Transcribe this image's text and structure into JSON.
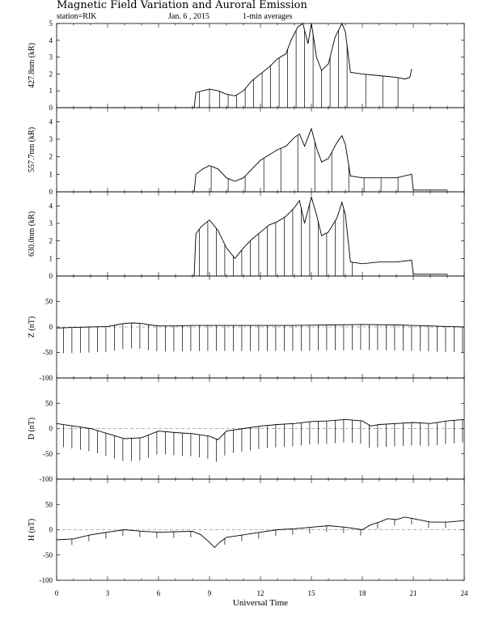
{
  "title": "Magnetic Field Variation and Auroral Emission",
  "station": "station=RIK",
  "date": "Jan. 6  , 2015",
  "averaging": "1-min averages",
  "chart_data": {
    "type": "line",
    "xlabel": "Universal Time",
    "xlim": [
      0,
      24
    ],
    "xticks": [
      "0",
      "3",
      "6",
      "9",
      "12",
      "15",
      "18",
      "21",
      "24"
    ],
    "panels": [
      {
        "name": "427.8nm (kR)",
        "ylim": [
          0,
          5
        ],
        "yticks": [
          "0",
          "1",
          "2",
          "3",
          "4",
          "5"
        ],
        "zero_line": false,
        "series": [
          {
            "x": [
              0,
              8.1,
              8.2,
              8.6,
              9.0,
              9.5,
              10.0,
              10.5,
              11.0,
              11.5,
              12.0,
              12.5,
              13.0,
              13.5,
              13.8,
              14.2,
              14.5,
              14.8,
              15.0,
              15.3,
              15.6,
              16.0,
              16.4,
              16.8,
              17.0,
              17.3,
              18.0,
              19.0,
              20.0,
              20.5,
              20.8,
              20.9
            ],
            "y": [
              0,
              0,
              0.9,
              1.0,
              1.1,
              1.0,
              0.8,
              0.7,
              1.0,
              1.6,
              2.0,
              2.4,
              2.9,
              3.2,
              4.0,
              4.8,
              5.0,
              3.8,
              5.0,
              3.0,
              2.2,
              2.6,
              4.2,
              5.0,
              4.5,
              2.1,
              2.0,
              1.9,
              1.8,
              1.7,
              1.8,
              2.3
            ]
          }
        ],
        "spikes": [
          8.4,
          9.0,
          9.6,
          10.1,
          10.6,
          11.1,
          11.6,
          12.1,
          12.6,
          13.1,
          13.6,
          14.1,
          14.6,
          15.1,
          15.6,
          16.1,
          16.6,
          17.1,
          18.2,
          19.2,
          20.1
        ]
      },
      {
        "name": "557.7nm (kR)",
        "ylim": [
          0,
          4.8
        ],
        "yticks": [
          "0",
          "1",
          "2",
          "3",
          "4"
        ],
        "zero_line": false,
        "series": [
          {
            "x": [
              0,
              8.1,
              8.2,
              8.6,
              9.0,
              9.5,
              10.0,
              10.5,
              11.0,
              11.5,
              12.0,
              12.5,
              13.0,
              13.5,
              14.0,
              14.3,
              14.6,
              15.0,
              15.3,
              15.6,
              16.0,
              16.5,
              16.8,
              17.0,
              17.3,
              18.0,
              19.0,
              20.0,
              20.9,
              21.0,
              23.0
            ],
            "y": [
              0,
              0,
              1.0,
              1.3,
              1.5,
              1.3,
              0.8,
              0.6,
              0.8,
              1.3,
              1.8,
              2.1,
              2.4,
              2.6,
              3.1,
              3.3,
              2.6,
              3.6,
              2.5,
              1.7,
              1.9,
              2.8,
              3.2,
              2.7,
              0.9,
              0.8,
              0.8,
              0.8,
              1.0,
              0.1,
              0.1
            ]
          }
        ],
        "spikes": [
          9.1,
          10.1,
          11.1,
          12.2,
          13.2,
          14.2,
          15.2,
          16.2,
          17.2,
          18.1,
          19.1,
          20.1
        ]
      },
      {
        "name": "630.0nm (kR)",
        "ylim": [
          0,
          4.8
        ],
        "yticks": [
          "0",
          "1",
          "2",
          "3",
          "4"
        ],
        "zero_line": false,
        "series": [
          {
            "x": [
              0,
              8.1,
              8.2,
              8.5,
              9.0,
              9.5,
              10.0,
              10.5,
              11.0,
              11.5,
              12.0,
              12.5,
              13.0,
              13.5,
              14.0,
              14.3,
              14.6,
              15.0,
              15.3,
              15.6,
              16.0,
              16.5,
              16.8,
              17.0,
              17.3,
              18.0,
              19.0,
              20.0,
              20.9,
              21.0,
              23.0
            ],
            "y": [
              0,
              0,
              2.4,
              2.8,
              3.2,
              2.6,
              1.6,
              1.0,
              1.6,
              2.1,
              2.5,
              2.9,
              3.1,
              3.4,
              3.9,
              4.3,
              3.0,
              4.5,
              3.5,
              2.3,
              2.5,
              3.3,
              4.2,
              3.5,
              0.8,
              0.7,
              0.8,
              0.8,
              0.9,
              0.1,
              0.1
            ]
          }
        ],
        "spikes": [
          8.4,
          8.9,
          9.4,
          9.9,
          10.4,
          10.9,
          11.4,
          11.9,
          12.4,
          12.9,
          13.4,
          13.9,
          14.4,
          14.9,
          15.4,
          15.9,
          16.4,
          16.9,
          17.4
        ]
      },
      {
        "name": "Z (nT)",
        "ylim": [
          -100,
          100
        ],
        "yticks": [
          "-100",
          "-50",
          "0",
          "50"
        ],
        "zero_line": true,
        "series": [
          {
            "x": [
              0,
              1,
              2,
              3,
              3.5,
              4,
              4.5,
              5,
              5.5,
              6,
              7,
              8,
              9,
              10,
              12,
              14,
              16,
              18,
              20,
              21,
              22,
              23,
              24
            ],
            "y": [
              -2,
              -1,
              0,
              1,
              4,
              7,
              8,
              7,
              4,
              2,
              2,
              3,
              3,
              3,
              3,
              3,
              4,
              5,
              4,
              3,
              2,
              1,
              0
            ]
          }
        ],
        "spikes": [
          0.4,
          0.9,
          1.4,
          1.9,
          2.4,
          2.9,
          3.4,
          3.9,
          4.4,
          4.9,
          5.4,
          5.9,
          6.4,
          6.9,
          7.4,
          7.9,
          8.4,
          8.9,
          9.4,
          9.9,
          10.4,
          10.9,
          11.4,
          11.9,
          12.4,
          12.9,
          13.4,
          13.9,
          14.4,
          14.9,
          15.4,
          15.9,
          16.4,
          16.9,
          17.4,
          17.9,
          18.4,
          18.9,
          19.4,
          19.9,
          20.4,
          20.9,
          21.4,
          21.9,
          22.4,
          22.9,
          23.4,
          23.9
        ],
        "spike_depth": 50
      },
      {
        "name": "D (nT)",
        "ylim": [
          -100,
          100
        ],
        "yticks": [
          "-100",
          "-50",
          "0",
          "50"
        ],
        "zero_line": true,
        "series": [
          {
            "x": [
              0,
              1,
              2,
              3,
              4,
              5,
              6,
              7,
              8,
              9,
              9.5,
              10,
              11,
              12,
              13,
              14,
              15,
              16,
              17,
              18,
              18.5,
              19,
              20,
              21,
              22,
              23,
              24
            ],
            "y": [
              10,
              5,
              0,
              -10,
              -20,
              -18,
              -5,
              -8,
              -10,
              -15,
              -22,
              -5,
              0,
              5,
              8,
              10,
              14,
              15,
              18,
              15,
              5,
              8,
              10,
              12,
              10,
              15,
              18
            ]
          }
        ],
        "spikes": [
          0.4,
          0.9,
          1.4,
          1.9,
          2.4,
          2.9,
          3.4,
          3.9,
          4.4,
          4.9,
          5.4,
          5.9,
          6.4,
          6.9,
          7.4,
          7.9,
          8.4,
          8.9,
          9.4,
          9.9,
          10.4,
          10.9,
          11.4,
          11.9,
          12.4,
          12.9,
          13.4,
          13.9,
          14.4,
          14.9,
          15.4,
          15.9,
          16.4,
          16.9,
          17.4,
          17.9,
          18.4,
          18.9,
          19.4,
          19.9,
          20.4,
          20.9,
          21.4,
          21.9,
          22.4,
          22.9,
          23.4,
          23.9
        ],
        "spike_depth": 45
      },
      {
        "name": "H (nT)",
        "ylim": [
          -100,
          100
        ],
        "yticks": [
          "-100",
          "-50",
          "0",
          "50"
        ],
        "zero_line": true,
        "series": [
          {
            "x": [
              0,
              1,
              2,
              3,
              4,
              5,
              6,
              7,
              8,
              8.5,
              9,
              9.3,
              9.6,
              10,
              11,
              12,
              13,
              14,
              15,
              16,
              17,
              18,
              18.5,
              19,
              19.5,
              20,
              20.5,
              21,
              22,
              23,
              24
            ],
            "y": [
              -20,
              -18,
              -10,
              -5,
              0,
              -3,
              -5,
              -4,
              -3,
              -10,
              -25,
              -35,
              -25,
              -15,
              -10,
              -5,
              0,
              2,
              5,
              8,
              5,
              0,
              10,
              15,
              22,
              20,
              25,
              22,
              15,
              15,
              18
            ]
          }
        ],
        "spikes": [
          0.9,
          1.9,
          2.9,
          3.9,
          4.9,
          5.9,
          6.9,
          7.9,
          9.9,
          10.9,
          11.9,
          12.9,
          13.9,
          14.9,
          15.9,
          16.9,
          17.9,
          18.9,
          19.9,
          20.9,
          21.9,
          22.9
        ],
        "spike_depth": 12
      }
    ]
  }
}
